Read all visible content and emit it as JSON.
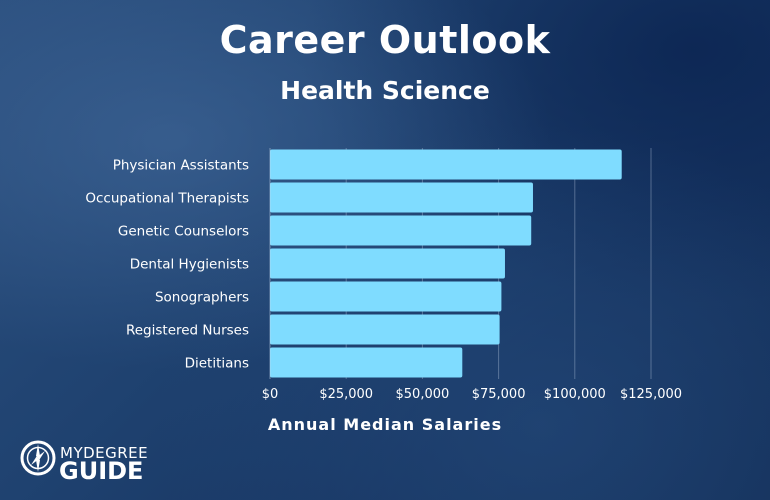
{
  "header": {
    "title": "Career Outlook",
    "subtitle": "Health Science"
  },
  "chart_data": {
    "type": "bar",
    "orientation": "horizontal",
    "categories": [
      "Physician Assistants",
      "Occupational Therapists",
      "Genetic Counselors",
      "Dental Hygienists",
      "Sonographers",
      "Registered Nurses",
      "Dietitians"
    ],
    "values": [
      115390,
      86280,
      85700,
      77090,
      75920,
      75330,
      63090
    ],
    "xlabel": "Annual Median Salaries",
    "ylabel": "",
    "xlim": [
      0,
      125000
    ],
    "x_ticks": [
      0,
      25000,
      50000,
      75000,
      100000,
      125000
    ],
    "x_tick_labels": [
      "$0",
      "$25,000",
      "$50,000",
      "$75,000",
      "$100,000",
      "$125,000"
    ],
    "grid": true,
    "bar_color": "#7fdcff"
  },
  "logo": {
    "top_text": "MYDEGREE",
    "bottom_text": "GUIDE",
    "icon": "compass-icon"
  }
}
